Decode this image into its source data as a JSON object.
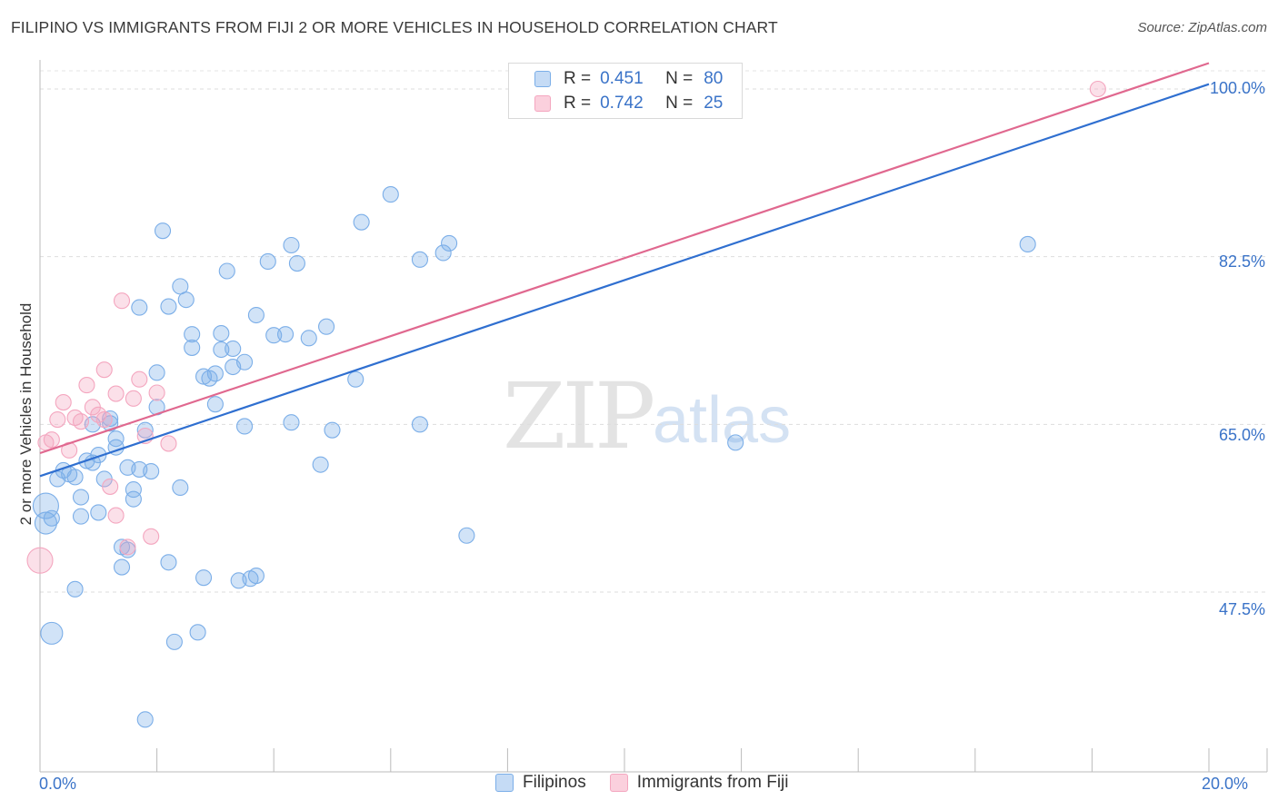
{
  "title": "FILIPINO VS IMMIGRANTS FROM FIJI 2 OR MORE VEHICLES IN HOUSEHOLD CORRELATION CHART",
  "source": "Source: ZipAtlas.com",
  "watermark": {
    "zip": "ZIP",
    "atlas": "atlas"
  },
  "legend": {
    "r_label": "R =",
    "n_label": "N =",
    "rows": [
      {
        "r": "0.451",
        "n": "80",
        "color": "#7baee8"
      },
      {
        "r": "0.742",
        "n": "25",
        "color": "#f4a6bf"
      }
    ]
  },
  "bottom_legend": [
    "Filipinos",
    "Immigrants from Fiji"
  ],
  "chart_data": {
    "type": "scatter",
    "title": "FILIPINO VS IMMIGRANTS FROM FIJI 2 OR MORE VEHICLES IN HOUSEHOLD CORRELATION CHART",
    "xlabel": "",
    "ylabel": "2 or more Vehicles in Household",
    "xlim": [
      0,
      20
    ],
    "ylim": [
      33,
      101
    ],
    "x_tick_labels": [
      "0.0%",
      "20.0%"
    ],
    "y_ticks": [
      47.5,
      65.0,
      82.5,
      100.0
    ],
    "y_tick_labels": [
      "47.5%",
      "65.0%",
      "82.5%",
      "100.0%"
    ],
    "series": [
      {
        "name": "Filipinos",
        "color": "#7baee8",
        "line_color": "#2f6fd0",
        "trend": {
          "x": [
            0,
            20
          ],
          "y": [
            59.6,
            100.5
          ]
        },
        "points": [
          [
            0.1,
            56.5
          ],
          [
            0.1,
            54.7
          ],
          [
            0.2,
            43.2
          ],
          [
            0.3,
            59.3
          ],
          [
            0.4,
            60.2
          ],
          [
            0.5,
            59.8
          ],
          [
            0.6,
            59.5
          ],
          [
            0.6,
            47.8
          ],
          [
            0.7,
            55.4
          ],
          [
            0.7,
            57.4
          ],
          [
            0.8,
            61.2
          ],
          [
            0.9,
            65.0
          ],
          [
            1.0,
            55.8
          ],
          [
            1.0,
            61.8
          ],
          [
            1.1,
            59.3
          ],
          [
            1.2,
            65.6
          ],
          [
            1.2,
            65.1
          ],
          [
            1.3,
            63.5
          ],
          [
            1.3,
            62.6
          ],
          [
            1.4,
            52.2
          ],
          [
            1.4,
            50.1
          ],
          [
            1.5,
            60.5
          ],
          [
            1.6,
            57.2
          ],
          [
            1.6,
            58.2
          ],
          [
            1.7,
            60.3
          ],
          [
            1.7,
            77.2
          ],
          [
            1.8,
            64.4
          ],
          [
            1.9,
            60.1
          ],
          [
            2.0,
            70.4
          ],
          [
            2.0,
            66.8
          ],
          [
            2.1,
            85.2
          ],
          [
            2.2,
            50.6
          ],
          [
            2.2,
            77.3
          ],
          [
            2.3,
            42.3
          ],
          [
            2.4,
            58.4
          ],
          [
            2.4,
            79.4
          ],
          [
            2.5,
            78.0
          ],
          [
            2.6,
            73.0
          ],
          [
            2.6,
            74.4
          ],
          [
            2.7,
            43.3
          ],
          [
            2.8,
            70.0
          ],
          [
            2.9,
            69.8
          ],
          [
            3.0,
            67.1
          ],
          [
            3.0,
            70.3
          ],
          [
            3.1,
            72.8
          ],
          [
            3.1,
            74.5
          ],
          [
            3.2,
            81.0
          ],
          [
            3.3,
            72.9
          ],
          [
            3.3,
            71.0
          ],
          [
            3.4,
            48.7
          ],
          [
            3.5,
            71.5
          ],
          [
            3.6,
            48.9
          ],
          [
            3.5,
            64.8
          ],
          [
            3.7,
            49.2
          ],
          [
            3.7,
            76.4
          ],
          [
            3.9,
            82.0
          ],
          [
            4.0,
            74.3
          ],
          [
            4.2,
            74.4
          ],
          [
            4.3,
            65.2
          ],
          [
            4.3,
            83.7
          ],
          [
            4.4,
            81.8
          ],
          [
            4.6,
            74.0
          ],
          [
            4.8,
            60.8
          ],
          [
            4.9,
            75.2
          ],
          [
            5.0,
            64.4
          ],
          [
            5.4,
            69.7
          ],
          [
            5.5,
            86.1
          ],
          [
            6.0,
            89.0
          ],
          [
            6.5,
            65.0
          ],
          [
            6.5,
            82.2
          ],
          [
            6.9,
            82.9
          ],
          [
            7.0,
            83.9
          ],
          [
            7.3,
            53.4
          ],
          [
            11.9,
            63.1
          ],
          [
            16.9,
            83.8
          ],
          [
            1.8,
            34.2
          ],
          [
            0.9,
            61.0
          ],
          [
            0.2,
            55.2
          ],
          [
            1.5,
            51.9
          ],
          [
            2.8,
            49.0
          ]
        ]
      },
      {
        "name": "Immigrants from Fiji",
        "color": "#f4a6bf",
        "line_color": "#e0688f",
        "trend": {
          "x": [
            0,
            20
          ],
          "y": [
            62.0,
            102.7
          ]
        },
        "points": [
          [
            0.0,
            50.8
          ],
          [
            0.1,
            63.1
          ],
          [
            0.2,
            63.4
          ],
          [
            0.3,
            65.5
          ],
          [
            0.4,
            67.3
          ],
          [
            0.5,
            62.3
          ],
          [
            0.6,
            65.7
          ],
          [
            0.7,
            65.3
          ],
          [
            0.8,
            69.1
          ],
          [
            0.9,
            66.8
          ],
          [
            1.0,
            66.0
          ],
          [
            1.1,
            65.5
          ],
          [
            1.1,
            70.7
          ],
          [
            1.2,
            58.5
          ],
          [
            1.3,
            55.5
          ],
          [
            1.3,
            68.2
          ],
          [
            1.4,
            77.9
          ],
          [
            1.5,
            52.2
          ],
          [
            1.6,
            67.7
          ],
          [
            1.7,
            69.7
          ],
          [
            1.8,
            63.8
          ],
          [
            1.9,
            53.3
          ],
          [
            2.0,
            68.3
          ],
          [
            2.2,
            63.0
          ],
          [
            18.1,
            100.0
          ]
        ]
      }
    ]
  }
}
